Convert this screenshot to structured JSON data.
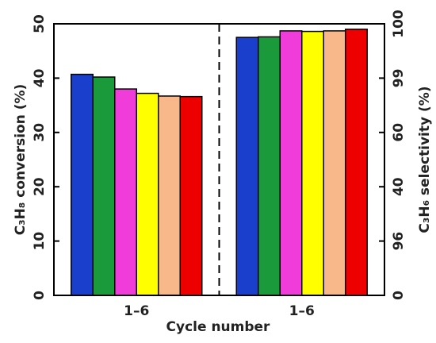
{
  "chart_data": {
    "type": "bar",
    "xlabel": "Cycle number",
    "ylabel": "C₃H₈ conversion (%)",
    "y2label": "C₃H₆ selectivity (%)",
    "colors": [
      "#1a3fcc",
      "#1a9a3a",
      "#f03cd8",
      "#ffff00",
      "#f8b88a",
      "#ee0000"
    ],
    "groups": [
      {
        "label": "1–6",
        "values": [
          40.7,
          40.2,
          38.0,
          37.2,
          36.7,
          36.6
        ]
      },
      {
        "label": "1–6",
        "axis": "y2",
        "values": [
          47.5,
          47.6,
          48.7,
          48.6,
          48.7,
          49.0
        ]
      }
    ],
    "ylim": [
      0,
      50
    ],
    "yticks": [
      0,
      10,
      20,
      30,
      40,
      50
    ],
    "y2lim": [
      0,
      50
    ],
    "y2ticks": [
      0,
      {
        "value": 10,
        "label": "96"
      },
      {
        "value": 20,
        "label": "40"
      },
      {
        "value": 30,
        "label": "60"
      },
      {
        "value": 40,
        "label": "99"
      },
      {
        "value": 50,
        "label": "100"
      }
    ]
  }
}
